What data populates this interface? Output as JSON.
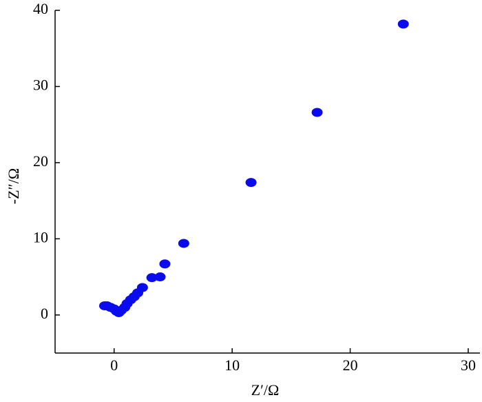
{
  "chart_data": {
    "type": "scatter",
    "xlabel": "Z′/Ω",
    "ylabel": "-Z″/Ω",
    "color": "#0a0aee",
    "x": [
      24.5,
      17.2,
      11.6,
      5.9,
      4.3,
      3.9,
      3.2,
      2.4,
      2.0,
      1.7,
      1.4,
      1.1,
      0.9,
      0.6,
      0.4,
      0.2,
      0.0,
      -0.3,
      -0.6,
      -0.8
    ],
    "values": [
      38.2,
      26.6,
      17.4,
      9.4,
      6.7,
      5.0,
      4.9,
      3.6,
      2.9,
      2.4,
      2.0,
      1.5,
      1.0,
      0.6,
      0.3,
      0.5,
      0.8,
      1.0,
      1.2,
      1.2
    ],
    "xlim": [
      -5,
      30
    ],
    "ylim": [
      -5,
      40
    ],
    "xticks": [
      0,
      10,
      20,
      30
    ],
    "yticks": [
      0,
      10,
      20,
      30,
      40
    ]
  }
}
